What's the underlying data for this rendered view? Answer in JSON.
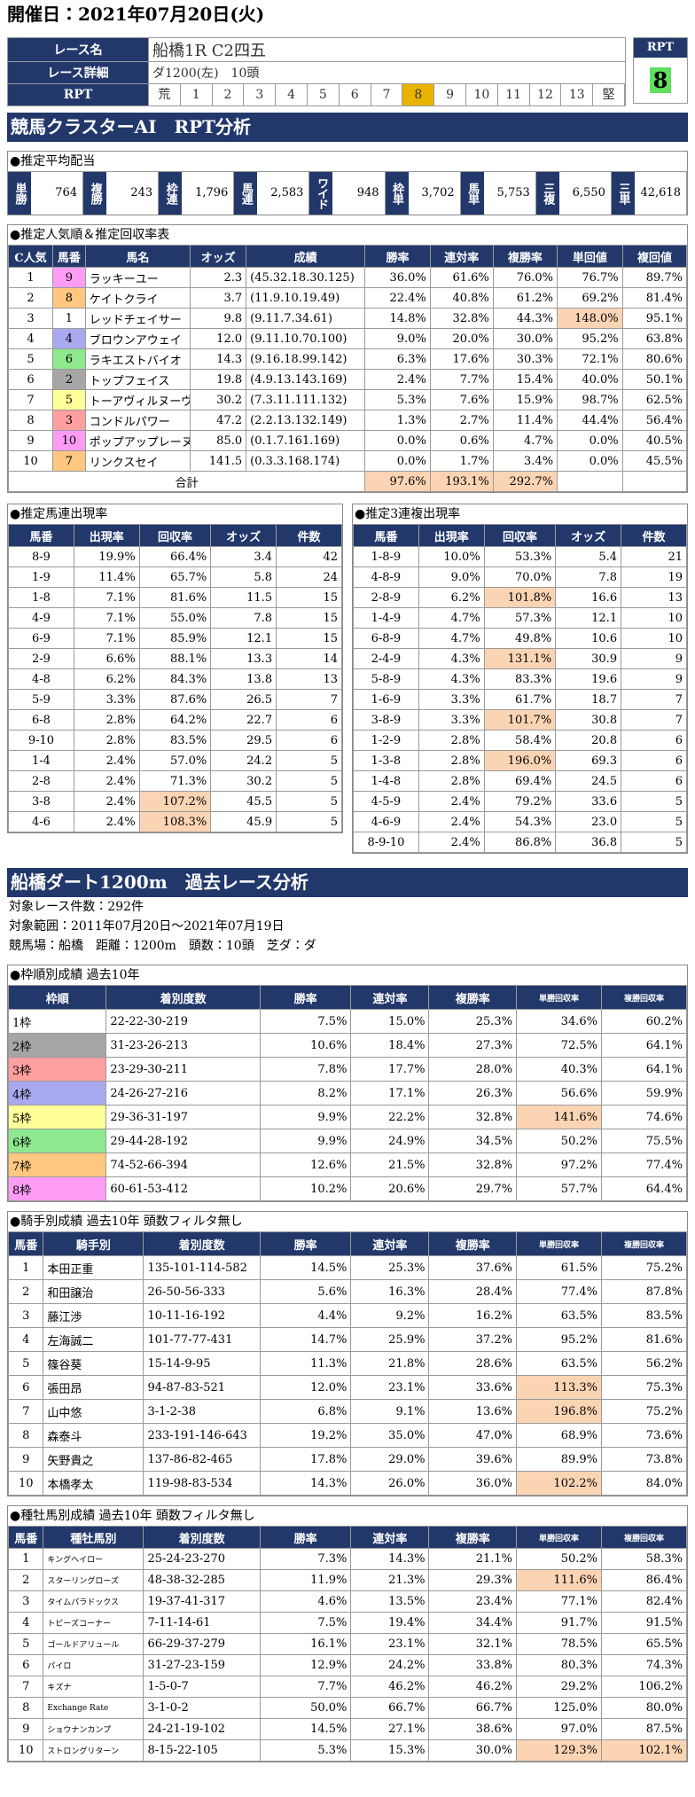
{
  "header": {
    "date": "開催日：2021年07月20日(火)"
  },
  "race": {
    "name_label": "レース名",
    "name": "船橋1R C2四五",
    "detail_label": "レース詳細",
    "detail": "ダ1200(左)　10頭",
    "rpt_label": "RPT",
    "rpt_scale": [
      "荒",
      "1",
      "2",
      "3",
      "4",
      "5",
      "6",
      "7",
      "8",
      "9",
      "10",
      "11",
      "12",
      "13",
      "堅"
    ],
    "rpt_box_label": "RPT",
    "rpt_value": "8"
  },
  "section1": {
    "title": "競馬クラスターAI　RPT分析"
  },
  "payout": {
    "title": "●推定平均配当",
    "items": [
      {
        "label": "単勝",
        "value": "764"
      },
      {
        "label": "複勝",
        "value": "243"
      },
      {
        "label": "枠連",
        "value": "1,796"
      },
      {
        "label": "馬連",
        "value": "2,583"
      },
      {
        "label": "ワイド",
        "value": "948"
      },
      {
        "label": "枠単",
        "value": "3,702"
      },
      {
        "label": "馬単",
        "value": "5,753"
      },
      {
        "label": "三複",
        "value": "6,550"
      },
      {
        "label": "三単",
        "value": "42,618"
      }
    ]
  },
  "popularity": {
    "title": "●推定人気順＆推定回収率表",
    "headers": [
      "C人気",
      "馬番",
      "馬名",
      "オッズ",
      "成績",
      "勝率",
      "連対率",
      "複勝率",
      "単回値",
      "複回値"
    ],
    "rows": [
      [
        "1",
        "9",
        "ラッキーユー",
        "2.3",
        "(45.32.18.30.125)",
        "36.0%",
        "61.6%",
        "76.0%",
        "76.7%",
        "89.7%"
      ],
      [
        "2",
        "8",
        "ケイトクライ",
        "3.7",
        "(11.9.10.19.49)",
        "22.4%",
        "40.8%",
        "61.2%",
        "69.2%",
        "81.4%"
      ],
      [
        "3",
        "1",
        "レッドチェイサー",
        "9.8",
        "(9.11.7.34.61)",
        "14.8%",
        "32.8%",
        "44.3%",
        "148.0%",
        "95.1%"
      ],
      [
        "4",
        "4",
        "ブロウンアウェイ",
        "12.0",
        "(9.11.10.70.100)",
        "9.0%",
        "20.0%",
        "30.0%",
        "95.2%",
        "63.8%"
      ],
      [
        "5",
        "6",
        "ラキエストバイオ",
        "14.3",
        "(9.16.18.99.142)",
        "6.3%",
        "17.6%",
        "30.3%",
        "72.1%",
        "80.6%"
      ],
      [
        "6",
        "2",
        "トップフェイス",
        "19.8",
        "(4.9.13.143.169)",
        "2.4%",
        "7.7%",
        "15.4%",
        "40.0%",
        "50.1%"
      ],
      [
        "7",
        "5",
        "トーアヴィルヌーヴ",
        "30.2",
        "(7.3.11.111.132)",
        "5.3%",
        "7.6%",
        "15.9%",
        "98.7%",
        "62.5%"
      ],
      [
        "8",
        "3",
        "コンドルパワー",
        "47.2",
        "(2.2.13.132.149)",
        "1.3%",
        "2.7%",
        "11.4%",
        "44.4%",
        "56.4%"
      ],
      [
        "9",
        "10",
        "ポップアップレーヌ",
        "85.0",
        "(0.1.7.161.169)",
        "0.0%",
        "0.6%",
        "4.7%",
        "0.0%",
        "40.5%"
      ],
      [
        "10",
        "7",
        "リンクスセイ",
        "141.5",
        "(0.3.3.168.174)",
        "0.0%",
        "1.7%",
        "3.4%",
        "0.0%",
        "45.5%"
      ]
    ],
    "total": {
      "label": "合計",
      "values": [
        "97.6%",
        "193.1%",
        "292.7%"
      ]
    },
    "highlight": [
      [
        2,
        8
      ]
    ]
  },
  "umaren": {
    "title": "●推定馬連出現率",
    "headers": [
      "馬番",
      "出現率",
      "回収率",
      "オッズ",
      "件数"
    ],
    "rows": [
      [
        "8-9",
        "19.9%",
        "66.4%",
        "3.4",
        "42"
      ],
      [
        "1-9",
        "11.4%",
        "65.7%",
        "5.8",
        "24"
      ],
      [
        "1-8",
        "7.1%",
        "81.6%",
        "11.5",
        "15"
      ],
      [
        "4-9",
        "7.1%",
        "55.0%",
        "7.8",
        "15"
      ],
      [
        "6-9",
        "7.1%",
        "85.9%",
        "12.1",
        "15"
      ],
      [
        "2-9",
        "6.6%",
        "88.1%",
        "13.3",
        "14"
      ],
      [
        "4-8",
        "6.2%",
        "84.3%",
        "13.8",
        "13"
      ],
      [
        "5-9",
        "3.3%",
        "87.6%",
        "26.5",
        "7"
      ],
      [
        "6-8",
        "2.8%",
        "64.2%",
        "22.7",
        "6"
      ],
      [
        "9-10",
        "2.8%",
        "83.5%",
        "29.5",
        "6"
      ],
      [
        "1-4",
        "2.4%",
        "57.0%",
        "24.2",
        "5"
      ],
      [
        "2-8",
        "2.4%",
        "71.3%",
        "30.2",
        "5"
      ],
      [
        "3-8",
        "2.4%",
        "107.2%",
        "45.5",
        "5"
      ],
      [
        "4-6",
        "2.4%",
        "108.3%",
        "45.9",
        "5"
      ]
    ],
    "highlight": [
      [
        12,
        2
      ],
      [
        13,
        2
      ]
    ]
  },
  "sanrenpuku": {
    "title": "●推定3連複出現率",
    "headers": [
      "馬番",
      "出現率",
      "回収率",
      "オッズ",
      "件数"
    ],
    "rows": [
      [
        "1-8-9",
        "10.0%",
        "53.3%",
        "5.4",
        "21"
      ],
      [
        "4-8-9",
        "9.0%",
        "70.0%",
        "7.8",
        "19"
      ],
      [
        "2-8-9",
        "6.2%",
        "101.8%",
        "16.6",
        "13"
      ],
      [
        "1-4-9",
        "4.7%",
        "57.3%",
        "12.1",
        "10"
      ],
      [
        "6-8-9",
        "4.7%",
        "49.8%",
        "10.6",
        "10"
      ],
      [
        "2-4-9",
        "4.3%",
        "131.1%",
        "30.9",
        "9"
      ],
      [
        "5-8-9",
        "4.3%",
        "83.3%",
        "19.6",
        "9"
      ],
      [
        "1-6-9",
        "3.3%",
        "61.7%",
        "18.7",
        "7"
      ],
      [
        "3-8-9",
        "3.3%",
        "101.7%",
        "30.8",
        "7"
      ],
      [
        "1-2-9",
        "2.8%",
        "58.4%",
        "20.8",
        "6"
      ],
      [
        "1-3-8",
        "2.8%",
        "196.0%",
        "69.3",
        "6"
      ],
      [
        "1-4-8",
        "2.8%",
        "69.4%",
        "24.5",
        "6"
      ],
      [
        "4-5-9",
        "2.4%",
        "79.2%",
        "33.6",
        "5"
      ],
      [
        "4-6-9",
        "2.4%",
        "54.3%",
        "23.0",
        "5"
      ],
      [
        "8-9-10",
        "2.4%",
        "86.8%",
        "36.8",
        "5"
      ]
    ],
    "highlight": [
      [
        2,
        2
      ],
      [
        5,
        2
      ],
      [
        8,
        2
      ],
      [
        10,
        2
      ]
    ]
  },
  "section2": {
    "title": "船橋ダート1200m　過去レース分析",
    "lines": [
      "対象レース件数：292件",
      "対象範囲：2011年07月20日～2021年07月19日",
      "競馬場：船橋　距離：1200m　頭数：10頭　芝ダ：ダ"
    ]
  },
  "frame": {
    "title": "●枠順別成績 過去10年",
    "headers": [
      "枠順",
      "着別度数",
      "勝率",
      "連対率",
      "複勝率",
      "単勝回収率",
      "複勝回収率"
    ],
    "rows": [
      [
        "1枠",
        "22-22-30-219",
        "7.5%",
        "15.0%",
        "25.3%",
        "34.6%",
        "60.2%"
      ],
      [
        "2枠",
        "31-23-26-213",
        "10.6%",
        "18.4%",
        "27.3%",
        "72.5%",
        "64.1%"
      ],
      [
        "3枠",
        "23-29-30-211",
        "7.8%",
        "17.7%",
        "28.0%",
        "40.3%",
        "64.1%"
      ],
      [
        "4枠",
        "24-26-27-216",
        "8.2%",
        "17.1%",
        "26.3%",
        "56.6%",
        "59.9%"
      ],
      [
        "5枠",
        "29-36-31-197",
        "9.9%",
        "22.2%",
        "32.8%",
        "141.6%",
        "74.6%"
      ],
      [
        "6枠",
        "29-44-28-192",
        "9.9%",
        "24.9%",
        "34.5%",
        "50.2%",
        "75.5%"
      ],
      [
        "7枠",
        "74-52-66-394",
        "12.6%",
        "21.5%",
        "32.8%",
        "97.2%",
        "77.4%"
      ],
      [
        "8枠",
        "60-61-53-412",
        "10.2%",
        "20.6%",
        "29.7%",
        "57.7%",
        "64.4%"
      ]
    ],
    "highlight": [
      [
        4,
        5
      ]
    ]
  },
  "jockey": {
    "title": "●騎手別成績 過去10年 頭数フィルタ無し",
    "headers": [
      "馬番",
      "騎手別",
      "着別度数",
      "勝率",
      "連対率",
      "複勝率",
      "単勝回収率",
      "複勝回収率"
    ],
    "rows": [
      [
        "1",
        "本田正重",
        "135-101-114-582",
        "14.5%",
        "25.3%",
        "37.6%",
        "61.5%",
        "75.2%"
      ],
      [
        "2",
        "和田譲治",
        "26-50-56-333",
        "5.6%",
        "16.3%",
        "28.4%",
        "77.4%",
        "87.8%"
      ],
      [
        "3",
        "藤江渉",
        "10-11-16-192",
        "4.4%",
        "9.2%",
        "16.2%",
        "63.5%",
        "83.5%"
      ],
      [
        "4",
        "左海誠二",
        "101-77-77-431",
        "14.7%",
        "25.9%",
        "37.2%",
        "95.2%",
        "81.6%"
      ],
      [
        "5",
        "篠谷葵",
        "15-14-9-95",
        "11.3%",
        "21.8%",
        "28.6%",
        "63.5%",
        "56.2%"
      ],
      [
        "6",
        "張田昂",
        "94-87-83-521",
        "12.0%",
        "23.1%",
        "33.6%",
        "113.3%",
        "75.3%"
      ],
      [
        "7",
        "山中悠",
        "3-1-2-38",
        "6.8%",
        "9.1%",
        "13.6%",
        "196.8%",
        "75.2%"
      ],
      [
        "8",
        "森泰斗",
        "233-191-146-643",
        "19.2%",
        "35.0%",
        "47.0%",
        "68.9%",
        "73.6%"
      ],
      [
        "9",
        "矢野貴之",
        "137-86-82-465",
        "17.8%",
        "29.0%",
        "39.6%",
        "89.9%",
        "73.8%"
      ],
      [
        "10",
        "本橋孝太",
        "119-98-83-534",
        "14.3%",
        "26.0%",
        "36.0%",
        "102.2%",
        "84.0%"
      ]
    ],
    "highlight": [
      [
        5,
        6
      ],
      [
        6,
        6
      ],
      [
        9,
        6
      ]
    ]
  },
  "sire": {
    "title": "●種牡馬別成績 過去10年 頭数フィルタ無し",
    "headers": [
      "馬番",
      "種牡馬別",
      "着別度数",
      "勝率",
      "連対率",
      "複勝率",
      "単勝回収率",
      "複勝回収率"
    ],
    "rows": [
      [
        "1",
        "キングヘイロー",
        "25-24-23-270",
        "7.3%",
        "14.3%",
        "21.1%",
        "50.2%",
        "58.3%"
      ],
      [
        "2",
        "スターリングローズ",
        "48-38-32-285",
        "11.9%",
        "21.3%",
        "29.3%",
        "111.6%",
        "86.4%"
      ],
      [
        "3",
        "タイムパラドックス",
        "19-37-41-317",
        "4.6%",
        "13.5%",
        "23.4%",
        "77.1%",
        "82.4%"
      ],
      [
        "4",
        "トビーズコーナー",
        "7-11-14-61",
        "7.5%",
        "19.4%",
        "34.4%",
        "91.7%",
        "91.5%"
      ],
      [
        "5",
        "ゴールドアリュール",
        "66-29-37-279",
        "16.1%",
        "23.1%",
        "32.1%",
        "78.5%",
        "65.5%"
      ],
      [
        "6",
        "パイロ",
        "31-27-23-159",
        "12.9%",
        "24.2%",
        "33.8%",
        "80.3%",
        "74.3%"
      ],
      [
        "7",
        "キズナ",
        "1-5-0-7",
        "7.7%",
        "46.2%",
        "46.2%",
        "29.2%",
        "106.2%"
      ],
      [
        "8",
        "Exchange Rate",
        "3-1-0-2",
        "50.0%",
        "66.7%",
        "66.7%",
        "125.0%",
        "80.0%"
      ],
      [
        "9",
        "ショウナンカンプ",
        "24-21-19-102",
        "14.5%",
        "27.1%",
        "38.6%",
        "97.0%",
        "87.5%"
      ],
      [
        "10",
        "ストロングリターン",
        "8-15-22-105",
        "5.3%",
        "15.3%",
        "30.0%",
        "129.3%",
        "102.1%"
      ]
    ],
    "highlight": [
      [
        1,
        6
      ],
      [
        9,
        6
      ],
      [
        9,
        7
      ]
    ]
  }
}
